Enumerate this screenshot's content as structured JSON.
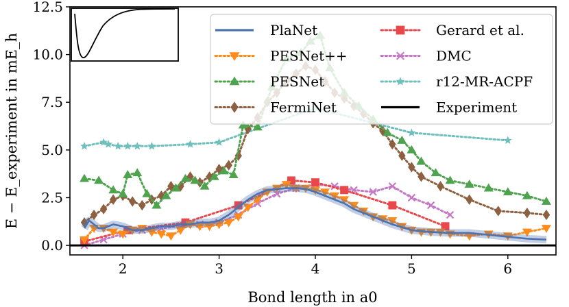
{
  "chart_data": {
    "type": "line",
    "title": "",
    "xlabel": "Bond length in a0",
    "ylabel": "E − E_experiment in mE_h",
    "xlim": [
      1.45,
      6.5
    ],
    "ylim": [
      -0.5,
      12.5
    ],
    "xticks": [
      2,
      3,
      4,
      5,
      6
    ],
    "yticks": [
      0.0,
      2.5,
      5.0,
      7.5,
      10.0,
      12.5
    ],
    "xtick_labels": [
      "2",
      "3",
      "4",
      "5",
      "6"
    ],
    "ytick_labels": [
      "0.0",
      "2.5",
      "5.0",
      "7.5",
      "10.0",
      "12.5"
    ],
    "legend_location": "top-right",
    "inset": "potential energy curve (shape only)",
    "series": [
      {
        "name": "PlaNet",
        "color": "#4c72b0",
        "style": "solid",
        "marker": "none",
        "x": [
          1.6,
          1.65,
          1.7,
          1.75,
          1.8,
          1.9,
          2.0,
          2.1,
          2.2,
          2.3,
          2.4,
          2.5,
          2.6,
          2.7,
          2.8,
          2.9,
          3.0,
          3.1,
          3.2,
          3.3,
          3.4,
          3.5,
          3.6,
          3.7,
          3.8,
          3.9,
          4.0,
          4.1,
          4.2,
          4.3,
          4.4,
          4.5,
          4.6,
          4.7,
          4.8,
          4.9,
          5.0,
          5.2,
          5.4,
          5.6,
          5.8,
          6.0,
          6.2,
          6.4
        ],
        "y": [
          0.9,
          1.3,
          1.1,
          0.9,
          0.9,
          1.1,
          1.0,
          0.8,
          0.8,
          0.9,
          1.0,
          1.0,
          1.1,
          1.1,
          1.2,
          1.2,
          1.3,
          1.6,
          2.0,
          2.4,
          2.7,
          2.9,
          2.95,
          3.0,
          3.0,
          2.95,
          2.8,
          2.6,
          2.4,
          2.2,
          1.9,
          1.7,
          1.5,
          1.3,
          1.1,
          0.95,
          0.8,
          0.7,
          0.65,
          0.65,
          0.55,
          0.45,
          0.35,
          0.3
        ]
      },
      {
        "name": "PESNet++",
        "color": "#ff8c1a",
        "style": "dotted",
        "marker": "triangle-down",
        "x": [
          1.6,
          1.7,
          1.8,
          1.9,
          2.0,
          2.1,
          2.2,
          2.3,
          2.4,
          2.5,
          2.6,
          2.7,
          2.8,
          2.9,
          3.0,
          3.1,
          3.2,
          3.3,
          3.4,
          3.5,
          3.6,
          3.7,
          3.8,
          3.9,
          4.0,
          4.1,
          4.2,
          4.3,
          4.4,
          4.5,
          4.6,
          4.7,
          4.8,
          4.9,
          5.0,
          5.1,
          5.2,
          5.3,
          5.4,
          5.6,
          5.8,
          6.0,
          6.2,
          6.4
        ],
        "y": [
          0.3,
          0.9,
          0.9,
          0.7,
          0.6,
          0.8,
          0.9,
          0.7,
          0.6,
          0.5,
          0.8,
          1.1,
          1.0,
          1.0,
          1.1,
          1.2,
          1.5,
          2.0,
          2.4,
          2.8,
          3.0,
          3.2,
          3.0,
          3.0,
          2.9,
          2.8,
          2.6,
          2.4,
          2.1,
          1.8,
          1.5,
          1.4,
          1.3,
          1.0,
          0.8,
          0.7,
          0.7,
          0.7,
          0.6,
          0.5,
          0.6,
          0.5,
          0.7,
          0.9
        ]
      },
      {
        "name": "PESNet",
        "color": "#4fa34f",
        "style": "dotted",
        "marker": "triangle-up",
        "x": [
          1.6,
          1.75,
          1.9,
          2.0,
          2.05,
          2.15,
          2.25,
          2.35,
          2.45,
          2.55,
          2.65,
          2.75,
          2.85,
          2.95,
          3.05,
          3.15,
          3.25,
          3.4,
          3.55,
          3.7,
          3.85,
          3.95,
          4.05,
          4.15,
          4.3,
          4.45,
          4.6,
          4.75,
          4.9,
          5.0,
          5.1,
          5.25,
          5.4,
          5.6,
          5.8,
          6.0,
          6.2,
          6.4
        ],
        "y": [
          3.5,
          3.4,
          2.9,
          2.7,
          3.7,
          3.8,
          2.7,
          2.1,
          2.6,
          3.0,
          3.5,
          3.4,
          3.1,
          3.6,
          3.9,
          3.7,
          6.3,
          6.2,
          8.3,
          9.8,
          10.1,
          10.7,
          11.0,
          9.3,
          8.0,
          7.3,
          6.6,
          5.9,
          5.5,
          5.0,
          4.4,
          3.8,
          3.4,
          3.2,
          3.0,
          2.8,
          2.6,
          2.3
        ]
      },
      {
        "name": "FermiNet",
        "color": "#8c6040",
        "style": "dotted",
        "marker": "diamond",
        "x": [
          1.6,
          1.7,
          1.8,
          1.9,
          2.0,
          2.1,
          2.2,
          2.3,
          2.4,
          2.5,
          2.6,
          2.7,
          2.8,
          2.9,
          3.0,
          3.1,
          3.2,
          3.3,
          3.4,
          3.5,
          3.6,
          3.7,
          3.8,
          3.9,
          4.0,
          4.1,
          4.2,
          4.3,
          4.4,
          4.5,
          4.6,
          4.7,
          4.8,
          4.9,
          5.0,
          5.1,
          5.3,
          5.6,
          5.9,
          6.2,
          6.4
        ],
        "y": [
          1.2,
          1.6,
          1.9,
          2.4,
          2.6,
          2.3,
          2.1,
          2.4,
          2.6,
          3.1,
          3.1,
          3.6,
          3.3,
          3.6,
          4.0,
          4.2,
          4.7,
          6.1,
          6.7,
          7.5,
          8.0,
          8.6,
          9.0,
          9.4,
          9.2,
          8.6,
          8.0,
          7.7,
          7.3,
          6.9,
          6.4,
          6.0,
          5.3,
          4.7,
          4.1,
          3.6,
          3.1,
          2.4,
          1.8,
          1.7,
          1.6
        ]
      },
      {
        "name": "Gerard et al.",
        "color": "#e8474b",
        "style": "dotted",
        "marker": "square",
        "x": [
          1.6,
          2.05,
          2.65,
          3.2,
          3.75,
          4.0,
          4.3,
          4.8,
          5.35
        ],
        "y": [
          0.2,
          0.8,
          1.2,
          2.1,
          3.4,
          3.3,
          2.9,
          2.1,
          1.0
        ]
      },
      {
        "name": "DMC",
        "color": "#c579c5",
        "style": "dotted",
        "marker": "x",
        "x": [
          1.6,
          1.8,
          2.0,
          2.2,
          2.4,
          2.6,
          2.8,
          3.0,
          3.2,
          3.4,
          3.6,
          3.8,
          4.0,
          4.2,
          4.4,
          4.6,
          4.8,
          5.0,
          5.2,
          5.4
        ],
        "y": [
          0.0,
          0.3,
          0.6,
          0.8,
          0.9,
          1.0,
          1.1,
          1.2,
          1.6,
          2.2,
          2.7,
          3.0,
          3.2,
          3.1,
          2.9,
          2.8,
          3.1,
          2.5,
          2.1,
          1.6
        ]
      },
      {
        "name": "r12-MR-ACPF",
        "color": "#6fbfbd",
        "style": "dotted",
        "marker": "star",
        "x": [
          1.6,
          1.8,
          1.85,
          1.95,
          2.05,
          2.15,
          2.3,
          2.7,
          3.0,
          4.0,
          5.0,
          6.0
        ],
        "y": [
          5.2,
          5.4,
          5.3,
          5.2,
          5.2,
          5.2,
          5.2,
          5.3,
          5.4,
          7.2,
          5.9,
          5.5
        ]
      },
      {
        "name": "Experiment",
        "color": "#000000",
        "style": "solid",
        "marker": "none",
        "x": [
          1.45,
          6.5
        ],
        "y": [
          0.0,
          0.0
        ]
      }
    ]
  }
}
